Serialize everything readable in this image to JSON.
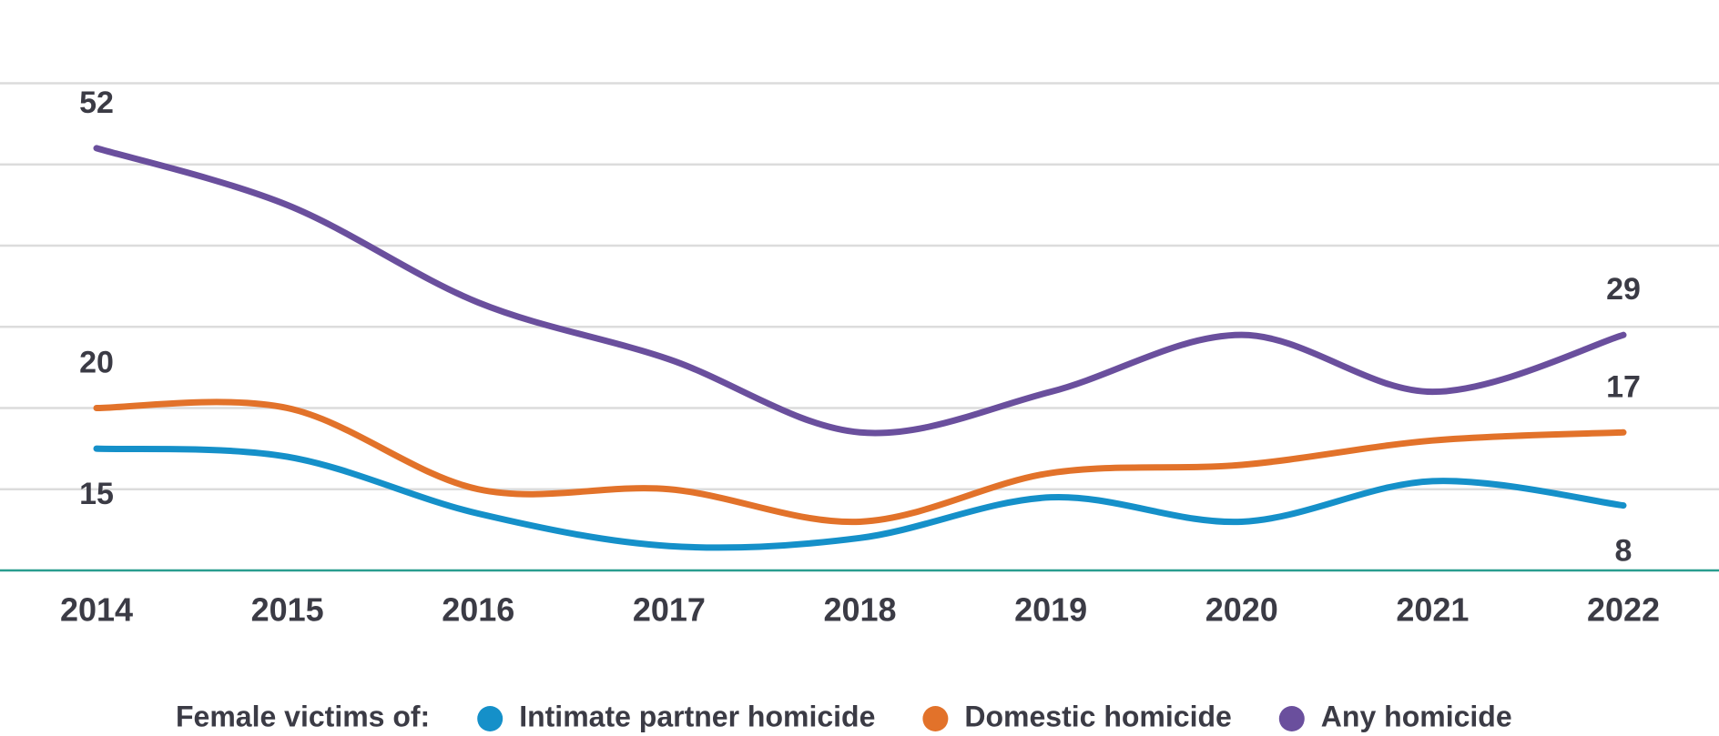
{
  "chart_data": {
    "type": "line",
    "categories": [
      "2014",
      "2015",
      "2016",
      "2017",
      "2018",
      "2019",
      "2020",
      "2021",
      "2022"
    ],
    "legend_title": "Female victims of:",
    "series": [
      {
        "name": "Intimate partner homicide",
        "color": "#1590c9",
        "values": [
          15,
          14,
          7,
          3,
          4,
          9,
          6,
          11,
          8
        ]
      },
      {
        "name": "Domestic homicide",
        "color": "#e2722a",
        "values": [
          20,
          20,
          10,
          10,
          6,
          12,
          13,
          16,
          17
        ]
      },
      {
        "name": "Any homicide",
        "color": "#6a4f9d",
        "values": [
          52,
          45,
          33,
          26,
          17,
          22,
          29,
          22,
          29
        ]
      }
    ],
    "ylim": [
      0,
      60
    ],
    "yticks": [
      0,
      10,
      20,
      30,
      40,
      50,
      60
    ],
    "grid": true,
    "legend": "bottom"
  }
}
